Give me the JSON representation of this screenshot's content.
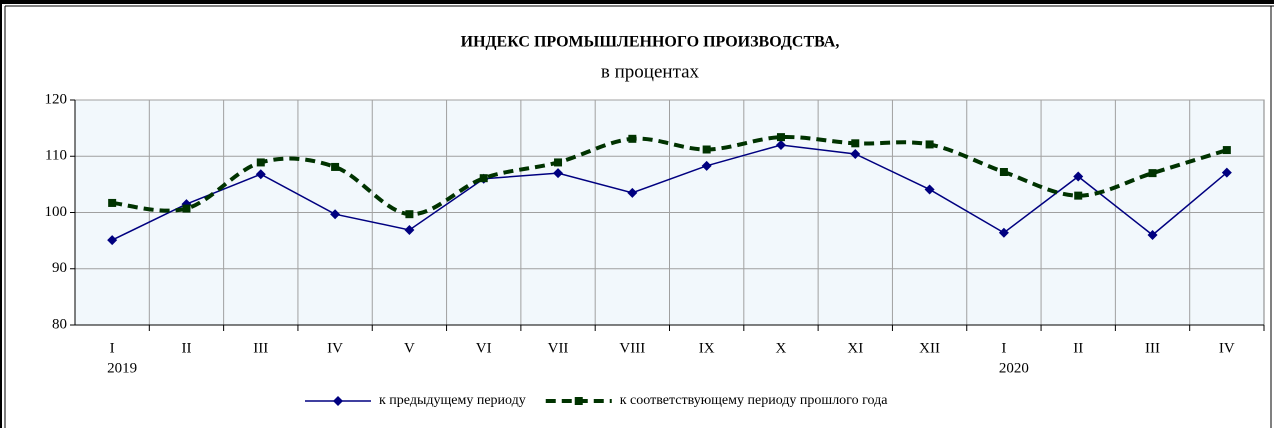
{
  "chart_data": {
    "type": "line",
    "title": "ИНДЕКС ПРОМЫШЛЕННОГО ПРОИЗВОДСТВА,",
    "subtitle": "в процентах",
    "categories": [
      "I",
      "II",
      "III",
      "IV",
      "V",
      "VI",
      "VII",
      "VIII",
      "IX",
      "X",
      "XI",
      "XII",
      "I",
      "II",
      "III",
      "IV"
    ],
    "years": [
      "2019",
      null,
      null,
      null,
      null,
      null,
      null,
      null,
      null,
      null,
      null,
      null,
      "2020",
      null,
      null,
      null
    ],
    "series": [
      {
        "name": "к предыдущему периоду",
        "color": "#000080",
        "style": "solid",
        "marker": "diamond",
        "values": [
          95.1,
          101.5,
          106.8,
          99.7,
          96.9,
          106.0,
          107.0,
          103.5,
          108.3,
          112.0,
          110.4,
          104.1,
          96.4,
          106.4,
          96.0,
          107.1
        ]
      },
      {
        "name": "к соответствующему периоду прошлого года",
        "color": "#003300",
        "style": "dashed",
        "marker": "square",
        "values": [
          101.7,
          100.7,
          108.9,
          108.1,
          99.7,
          106.1,
          108.9,
          113.1,
          111.2,
          113.4,
          112.3,
          112.1,
          107.2,
          103.0,
          107.0,
          111.1
        ]
      }
    ],
    "ylim": [
      80,
      120
    ],
    "yticks": [
      80,
      90,
      100,
      110,
      120
    ],
    "grid": true,
    "legend": "bottom"
  }
}
